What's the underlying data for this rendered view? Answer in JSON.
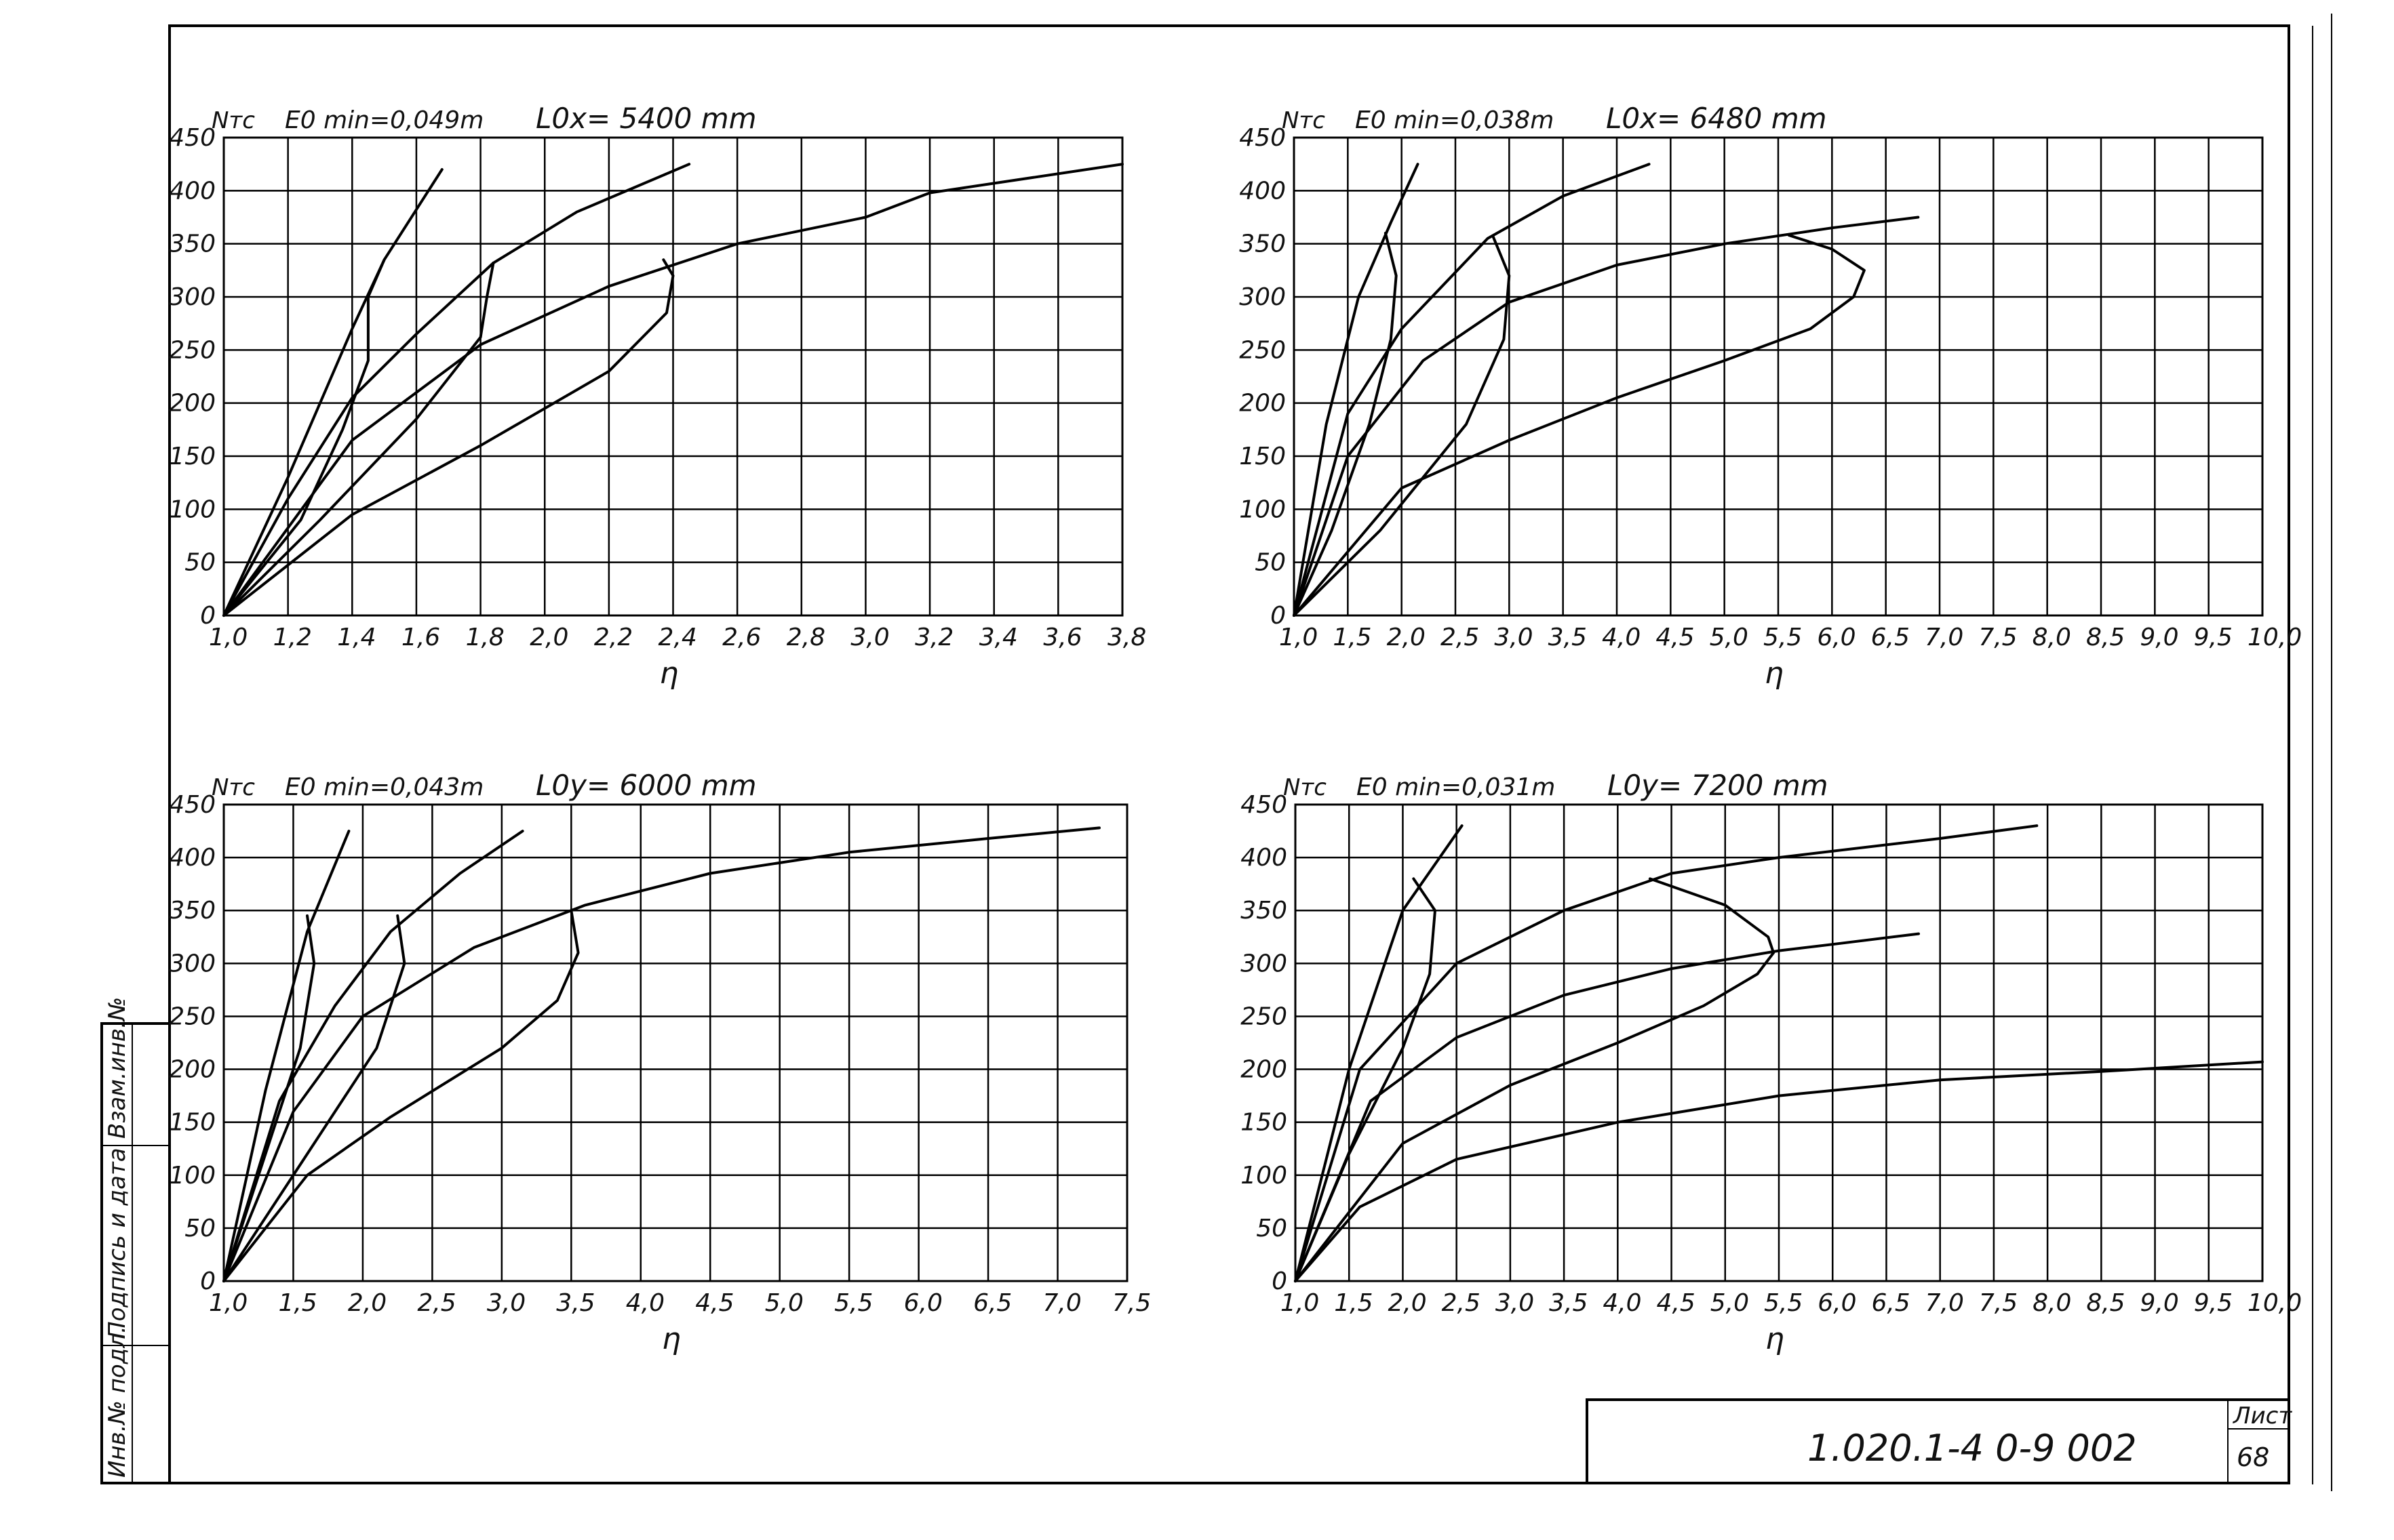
{
  "sheet": {
    "stamp_code": "1.020.1-4   0-9 002",
    "sheet_label": "Лист",
    "sheet_number": "68",
    "side_labels": [
      "Инв.№ подл.",
      "Подпись и дата",
      "Взам.инв.№"
    ]
  },
  "chart_data": [
    {
      "type": "line",
      "y_axis_label": "Nтс",
      "e0min_label": "E0 min=0,049m",
      "length_label": "L0x= 5400 mm",
      "xlabel": "η",
      "xlim": [
        1.0,
        3.8
      ],
      "ylim": [
        0,
        450
      ],
      "x_ticks": [
        1.0,
        1.2,
        1.4,
        1.6,
        1.8,
        2.0,
        2.2,
        2.4,
        2.6,
        2.8,
        3.0,
        3.2,
        3.4,
        3.6,
        3.8
      ],
      "x_tick_labels": [
        "1,0",
        "1,2",
        "1,4",
        "1,6",
        "1,8",
        "2,0",
        "2,2",
        "2,4",
        "2,6",
        "2,8",
        "3,0",
        "3,2",
        "3,4",
        "3,6",
        "3,8"
      ],
      "y_ticks": [
        0,
        50,
        100,
        150,
        200,
        250,
        300,
        350,
        400,
        450
      ],
      "y_tick_labels": [
        "0",
        "50",
        "100",
        "150",
        "200",
        "250",
        "300",
        "350",
        "400",
        "450"
      ],
      "grid": true,
      "series": [
        {
          "points": [
            [
              1.0,
              0
            ],
            [
              1.2,
              130
            ],
            [
              1.4,
              270
            ],
            [
              1.5,
              335
            ],
            [
              1.68,
              420
            ]
          ]
        },
        {
          "points": [
            [
              1.0,
              0
            ],
            [
              1.2,
              110
            ],
            [
              1.4,
              205
            ],
            [
              1.6,
              265
            ],
            [
              1.84,
              332
            ],
            [
              2.1,
              380
            ],
            [
              2.45,
              425
            ]
          ]
        },
        {
          "points": [
            [
              1.0,
              0
            ],
            [
              1.4,
              165
            ],
            [
              1.8,
              255
            ],
            [
              2.2,
              310
            ],
            [
              2.6,
              350
            ],
            [
              3.0,
              375
            ],
            [
              3.2,
              398
            ],
            [
              3.8,
              425
            ]
          ]
        },
        {
          "points": [
            [
              1.0,
              0
            ],
            [
              1.4,
              95
            ],
            [
              1.8,
              160
            ],
            [
              2.2,
              230
            ],
            [
              2.38,
              285
            ],
            [
              2.4,
              320
            ],
            [
              2.37,
              335
            ]
          ]
        },
        {
          "points": [
            [
              1.5,
              335
            ],
            [
              1.45,
              300
            ],
            [
              1.45,
              240
            ],
            [
              1.37,
              175
            ],
            [
              1.24,
              90
            ],
            [
              1.0,
              0
            ]
          ]
        },
        {
          "points": [
            [
              1.84,
              332
            ],
            [
              1.82,
              300
            ],
            [
              1.8,
              262
            ],
            [
              1.6,
              185
            ],
            [
              1.3,
              90
            ],
            [
              1.0,
              0
            ]
          ]
        }
      ]
    },
    {
      "type": "line",
      "y_axis_label": "Nтс",
      "e0min_label": "E0 min=0,038m",
      "length_label": "L0x= 6480 mm",
      "xlabel": "η",
      "xlim": [
        1.0,
        10.0
      ],
      "ylim": [
        0,
        450
      ],
      "x_ticks": [
        1.0,
        1.5,
        2.0,
        2.5,
        3.0,
        3.5,
        4.0,
        4.5,
        5.0,
        5.5,
        6.0,
        6.5,
        7.0,
        7.5,
        8.0,
        8.5,
        9.0,
        9.5,
        10.0
      ],
      "x_tick_labels": [
        "1,0",
        "1,5",
        "2,0",
        "2,5",
        "3,0",
        "3,5",
        "4,0",
        "4,5",
        "5,0",
        "5,5",
        "6,0",
        "6,5",
        "7,0",
        "7,5",
        "8,0",
        "8,5",
        "9,0",
        "9,5",
        "10,0"
      ],
      "y_ticks": [
        0,
        50,
        100,
        150,
        200,
        250,
        300,
        350,
        400,
        450
      ],
      "y_tick_labels": [
        "0",
        "50",
        "100",
        "150",
        "200",
        "250",
        "300",
        "350",
        "400",
        "450"
      ],
      "grid": true,
      "series": [
        {
          "points": [
            [
              1.0,
              0
            ],
            [
              1.3,
              180
            ],
            [
              1.6,
              300
            ],
            [
              1.9,
              370
            ],
            [
              2.15,
              425
            ]
          ]
        },
        {
          "points": [
            [
              1.0,
              0
            ],
            [
              1.5,
              190
            ],
            [
              2.0,
              270
            ],
            [
              2.8,
              355
            ],
            [
              3.5,
              395
            ],
            [
              4.3,
              425
            ]
          ]
        },
        {
          "points": [
            [
              1.0,
              0
            ],
            [
              1.5,
              150
            ],
            [
              2.2,
              240
            ],
            [
              3.0,
              295
            ],
            [
              4.0,
              330
            ],
            [
              5.0,
              350
            ],
            [
              6.0,
              365
            ],
            [
              6.8,
              375
            ]
          ]
        },
        {
          "points": [
            [
              1.0,
              0
            ],
            [
              2.0,
              120
            ],
            [
              3.0,
              165
            ],
            [
              4.0,
              205
            ],
            [
              5.0,
              240
            ],
            [
              5.8,
              270
            ],
            [
              6.2,
              300
            ],
            [
              6.3,
              325
            ],
            [
              6.0,
              345
            ],
            [
              5.6,
              358
            ]
          ]
        },
        {
          "points": [
            [
              1.85,
              360
            ],
            [
              1.95,
              320
            ],
            [
              1.9,
              260
            ],
            [
              1.7,
              180
            ],
            [
              1.35,
              80
            ],
            [
              1.0,
              0
            ]
          ]
        },
        {
          "points": [
            [
              2.85,
              357
            ],
            [
              3.0,
              320
            ],
            [
              2.95,
              260
            ],
            [
              2.6,
              180
            ],
            [
              1.8,
              80
            ],
            [
              1.0,
              0
            ]
          ]
        }
      ]
    },
    {
      "type": "line",
      "y_axis_label": "Nтс",
      "e0min_label": "E0 min=0,043m",
      "length_label": "L0y= 6000 mm",
      "xlabel": "η",
      "xlim": [
        1.0,
        7.5
      ],
      "ylim": [
        0,
        450
      ],
      "x_ticks": [
        1.0,
        1.5,
        2.0,
        2.5,
        3.0,
        3.5,
        4.0,
        4.5,
        5.0,
        5.5,
        6.0,
        6.5,
        7.0,
        7.5
      ],
      "x_tick_labels": [
        "1,0",
        "1,5",
        "2,0",
        "2,5",
        "3,0",
        "3,5",
        "4,0",
        "4,5",
        "5,0",
        "5,5",
        "6,0",
        "6,5",
        "7,0",
        "7,5"
      ],
      "y_ticks": [
        0,
        50,
        100,
        150,
        200,
        250,
        300,
        350,
        400,
        450
      ],
      "y_tick_labels": [
        "0",
        "50",
        "100",
        "150",
        "200",
        "250",
        "300",
        "350",
        "400",
        "450"
      ],
      "grid": true,
      "series": [
        {
          "points": [
            [
              1.0,
              0
            ],
            [
              1.3,
              180
            ],
            [
              1.6,
              330
            ],
            [
              1.9,
              425
            ]
          ]
        },
        {
          "points": [
            [
              1.0,
              0
            ],
            [
              1.4,
              170
            ],
            [
              1.8,
              260
            ],
            [
              2.2,
              330
            ],
            [
              2.7,
              385
            ],
            [
              3.15,
              425
            ]
          ]
        },
        {
          "points": [
            [
              1.0,
              0
            ],
            [
              1.5,
              160
            ],
            [
              2.0,
              250
            ],
            [
              2.8,
              315
            ],
            [
              3.6,
              355
            ],
            [
              4.5,
              385
            ],
            [
              5.5,
              405
            ],
            [
              6.5,
              418
            ],
            [
              7.3,
              428
            ]
          ]
        },
        {
          "points": [
            [
              1.0,
              0
            ],
            [
              1.6,
              100
            ],
            [
              2.2,
              155
            ],
            [
              3.0,
              220
            ],
            [
              3.4,
              265
            ],
            [
              3.55,
              310
            ],
            [
              3.5,
              350
            ]
          ]
        },
        {
          "points": [
            [
              1.6,
              345
            ],
            [
              1.65,
              300
            ],
            [
              1.55,
              220
            ],
            [
              1.3,
              120
            ],
            [
              1.0,
              0
            ]
          ]
        },
        {
          "points": [
            [
              2.25,
              345
            ],
            [
              2.3,
              300
            ],
            [
              2.1,
              220
            ],
            [
              1.6,
              120
            ],
            [
              1.0,
              0
            ]
          ]
        }
      ]
    },
    {
      "type": "line",
      "y_axis_label": "Nтс",
      "e0min_label": "E0 min=0,031m",
      "length_label": "L0y= 7200 mm",
      "xlabel": "η",
      "xlim": [
        1.0,
        10.0
      ],
      "ylim": [
        0,
        450
      ],
      "x_ticks": [
        1.0,
        1.5,
        2.0,
        2.5,
        3.0,
        3.5,
        4.0,
        4.5,
        5.0,
        5.5,
        6.0,
        6.5,
        7.0,
        7.5,
        8.0,
        8.5,
        9.0,
        9.5,
        10.0
      ],
      "x_tick_labels": [
        "1,0",
        "1,5",
        "2,0",
        "2,5",
        "3,0",
        "3,5",
        "4,0",
        "4,5",
        "5,0",
        "5,5",
        "6,0",
        "6,5",
        "7,0",
        "7,5",
        "8,0",
        "8,5",
        "9,0",
        "9,5",
        "10,0"
      ],
      "y_ticks": [
        0,
        50,
        100,
        150,
        200,
        250,
        300,
        350,
        400,
        450
      ],
      "y_tick_labels": [
        "0",
        "50",
        "100",
        "150",
        "200",
        "250",
        "300",
        "350",
        "400",
        "450"
      ],
      "grid": true,
      "series": [
        {
          "points": [
            [
              1.0,
              0
            ],
            [
              1.5,
              200
            ],
            [
              2.0,
              350
            ],
            [
              2.55,
              430
            ]
          ]
        },
        {
          "points": [
            [
              1.0,
              0
            ],
            [
              1.6,
              200
            ],
            [
              2.5,
              300
            ],
            [
              3.5,
              350
            ],
            [
              4.5,
              385
            ],
            [
              5.5,
              400
            ],
            [
              7.0,
              418
            ],
            [
              7.9,
              430
            ]
          ]
        },
        {
          "points": [
            [
              1.0,
              0
            ],
            [
              1.7,
              170
            ],
            [
              2.5,
              230
            ],
            [
              3.5,
              270
            ],
            [
              4.5,
              295
            ],
            [
              5.5,
              312
            ],
            [
              6.0,
              318
            ],
            [
              6.8,
              328
            ]
          ]
        },
        {
          "points": [
            [
              1.0,
              0
            ],
            [
              2.0,
              130
            ],
            [
              3.0,
              185
            ],
            [
              4.0,
              225
            ],
            [
              4.8,
              260
            ],
            [
              5.3,
              290
            ],
            [
              5.45,
              310
            ],
            [
              5.4,
              325
            ],
            [
              5.0,
              355
            ],
            [
              4.3,
              380
            ]
          ]
        },
        {
          "points": [
            [
              1.0,
              0
            ],
            [
              1.6,
              70
            ],
            [
              2.5,
              115
            ],
            [
              4.0,
              150
            ],
            [
              5.5,
              175
            ],
            [
              7.0,
              190
            ],
            [
              8.5,
              198
            ],
            [
              10.0,
              207
            ]
          ]
        },
        {
          "points": [
            [
              2.1,
              380
            ],
            [
              2.3,
              350
            ],
            [
              2.25,
              290
            ],
            [
              2.0,
              220
            ],
            [
              1.5,
              120
            ],
            [
              1.0,
              0
            ]
          ]
        }
      ]
    }
  ]
}
